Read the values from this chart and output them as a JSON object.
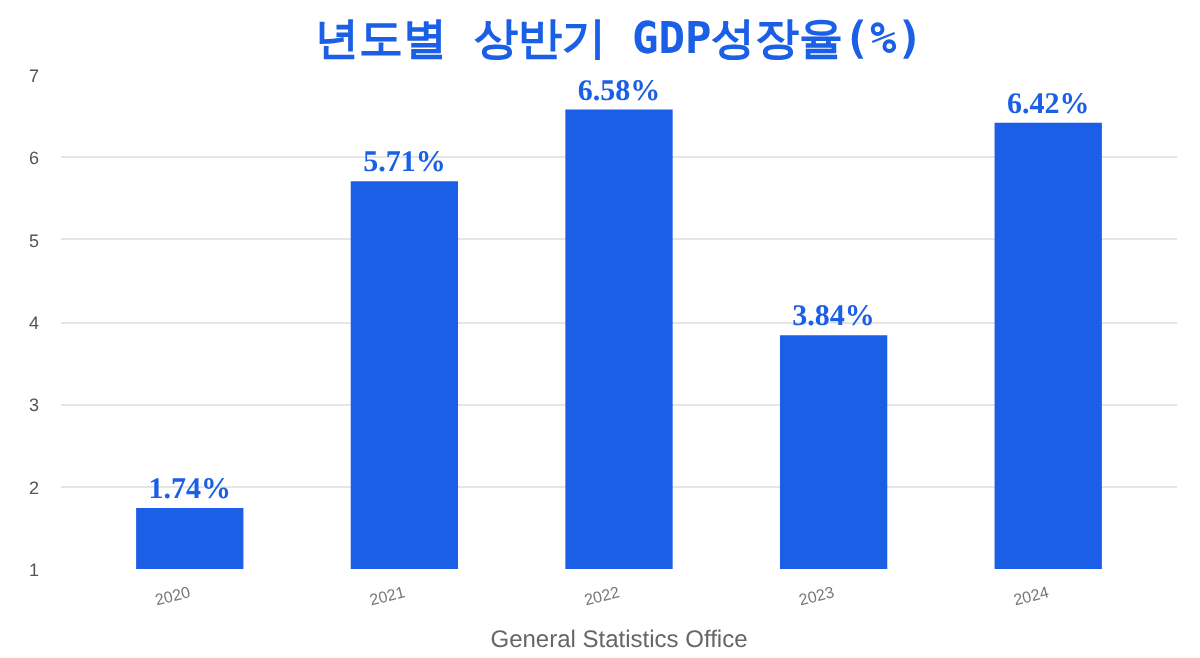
{
  "chart_data": {
    "type": "bar",
    "title": "년도별 상반기 GDP성장율(%)",
    "xlabel": "General Statistics Office",
    "categories": [
      "2020",
      "2021",
      "2022",
      "2023",
      "2024"
    ],
    "values": [
      1.74,
      5.71,
      6.58,
      3.84,
      6.42
    ],
    "value_labels": [
      "1.74%",
      "5.71%",
      "6.58%",
      "3.84%",
      "6.42%"
    ],
    "color": "#1a5fe6",
    "ylim": [
      1,
      7
    ],
    "yticks": [
      1,
      2,
      3,
      4,
      5,
      6,
      7
    ],
    "grid": "y"
  }
}
